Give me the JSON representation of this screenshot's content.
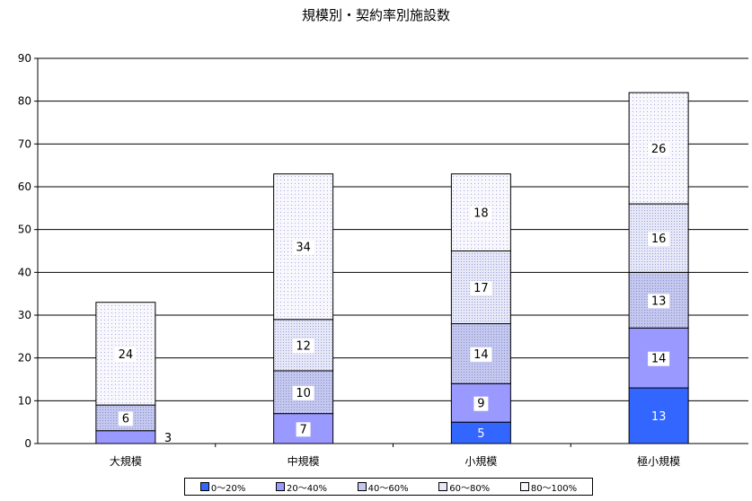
{
  "chart_data": {
    "type": "bar",
    "stacked": true,
    "title": "規模別・契約率別施設数",
    "categories": [
      "大規模",
      "中規模",
      "小規模",
      "極小規模"
    ],
    "ylim": [
      0,
      90
    ],
    "yticks": [
      0,
      10,
      20,
      30,
      40,
      50,
      60,
      70,
      80,
      90
    ],
    "grid": true,
    "legend_position": "bottom",
    "series": [
      {
        "name": "0～20%",
        "values": [
          0,
          0,
          5,
          13
        ],
        "color": "#3366ff"
      },
      {
        "name": "20～40%",
        "values": [
          3,
          7,
          9,
          14
        ],
        "color": "#9999ff"
      },
      {
        "name": "40～60%",
        "values": [
          6,
          10,
          14,
          13
        ],
        "color": "#c4c8ee"
      },
      {
        "name": "60～80%",
        "values": [
          0,
          12,
          17,
          16
        ],
        "color": "#e2e4f6"
      },
      {
        "name": "80～100%",
        "values": [
          24,
          34,
          18,
          26
        ],
        "color": "#f4f4fb"
      }
    ]
  }
}
